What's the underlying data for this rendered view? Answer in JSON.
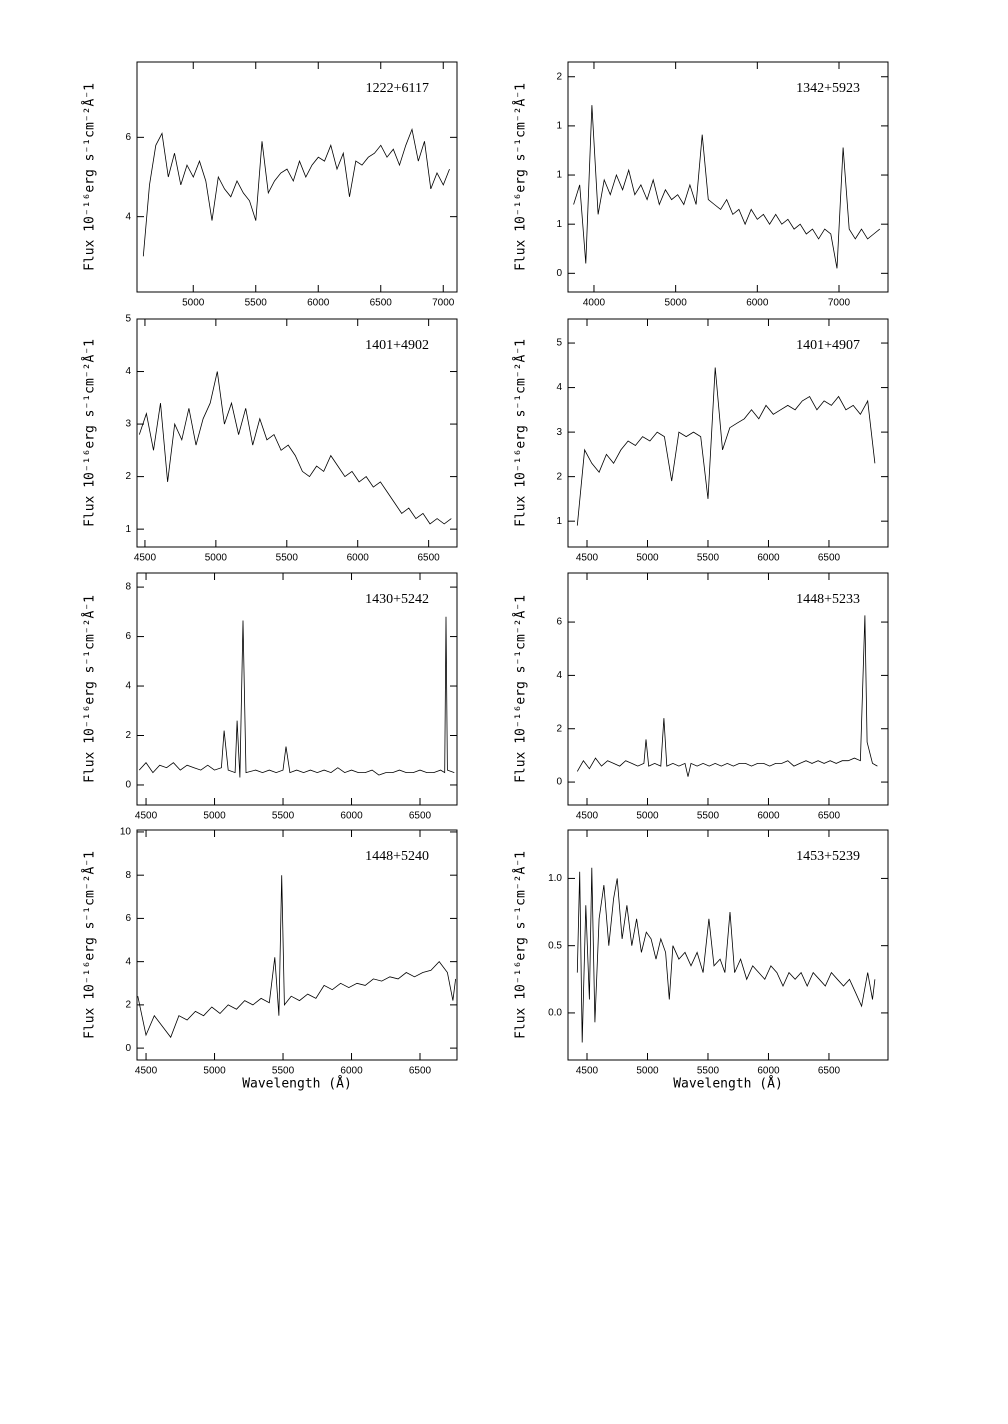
{
  "chart_data": [
    {
      "type": "line",
      "title": "1222+6117",
      "y_label": "Flux 10⁻¹⁶erg s⁻¹cm⁻²Å⁻1",
      "color": "#000000",
      "xlim": [
        4550,
        7110
      ],
      "ylim": [
        2.1,
        7.9
      ],
      "xticks": [
        5000,
        5500,
        6000,
        6500,
        7000
      ],
      "yticks": [
        4,
        6
      ],
      "x": [
        4600,
        4650,
        4700,
        4750,
        4800,
        4850,
        4900,
        4950,
        5000,
        5050,
        5100,
        5150,
        5200,
        5250,
        5300,
        5350,
        5400,
        5450,
        5500,
        5550,
        5600,
        5650,
        5700,
        5750,
        5800,
        5850,
        5900,
        5950,
        6000,
        6050,
        6100,
        6150,
        6200,
        6250,
        6300,
        6350,
        6400,
        6450,
        6500,
        6550,
        6600,
        6650,
        6700,
        6750,
        6800,
        6850,
        6900,
        6950,
        7000,
        7050
      ],
      "values": [
        3.0,
        4.8,
        5.8,
        6.1,
        5.0,
        5.6,
        4.8,
        5.3,
        5.0,
        5.4,
        4.9,
        3.9,
        5.0,
        4.7,
        4.5,
        4.9,
        4.6,
        4.4,
        3.9,
        5.9,
        4.6,
        4.9,
        5.1,
        5.2,
        4.9,
        5.4,
        5.0,
        5.3,
        5.5,
        5.4,
        5.8,
        5.2,
        5.6,
        4.5,
        5.4,
        5.3,
        5.5,
        5.6,
        5.8,
        5.5,
        5.7,
        5.3,
        5.8,
        6.2,
        5.4,
        5.9,
        4.7,
        5.1,
        4.8,
        5.2
      ]
    },
    {
      "type": "line",
      "title": "1342+5923",
      "y_label": "Flux 10⁻¹⁶erg s⁻¹cm⁻²Å⁻1",
      "color": "#000000",
      "xlim": [
        3682,
        7600
      ],
      "ylim": [
        -0.19,
        2.15
      ],
      "xticks": [
        4000,
        5000,
        6000,
        7000
      ],
      "yticks": [
        0,
        {
          "value": 0.5,
          "label": "1"
        },
        1,
        {
          "value": 1.5,
          "label": "1"
        },
        2
      ],
      "x": [
        3750,
        3825,
        3900,
        3975,
        4050,
        4125,
        4200,
        4275,
        4350,
        4425,
        4500,
        4575,
        4650,
        4725,
        4800,
        4875,
        4950,
        5025,
        5100,
        5175,
        5250,
        5325,
        5400,
        5475,
        5550,
        5625,
        5700,
        5775,
        5850,
        5925,
        6000,
        6075,
        6150,
        6225,
        6300,
        6375,
        6450,
        6525,
        6600,
        6675,
        6750,
        6825,
        6900,
        6975,
        7050,
        7125,
        7200,
        7275,
        7350,
        7425,
        7500
      ],
      "values": [
        0.7,
        0.9,
        0.1,
        1.71,
        0.6,
        0.95,
        0.8,
        1.0,
        0.85,
        1.05,
        0.8,
        0.9,
        0.75,
        0.95,
        0.7,
        0.85,
        0.75,
        0.8,
        0.7,
        0.9,
        0.7,
        1.41,
        0.75,
        0.7,
        0.65,
        0.75,
        0.6,
        0.65,
        0.5,
        0.65,
        0.55,
        0.6,
        0.5,
        0.6,
        0.5,
        0.55,
        0.45,
        0.5,
        0.4,
        0.45,
        0.35,
        0.45,
        0.4,
        0.05,
        1.28,
        0.45,
        0.35,
        0.45,
        0.35,
        0.4,
        0.45
      ]
    },
    {
      "type": "line",
      "title": "1401+4902",
      "y_label": "Flux 10⁻¹⁶erg s⁻¹cm⁻²Å⁻1",
      "color": "#000000",
      "xlim": [
        4444,
        6700
      ],
      "ylim": [
        0.66,
        5.0
      ],
      "xticks": [
        4500,
        5000,
        5500,
        6000,
        6500
      ],
      "yticks": [
        1,
        2,
        3,
        4,
        5
      ],
      "x": [
        4460,
        4510,
        4560,
        4610,
        4660,
        4710,
        4760,
        4810,
        4860,
        4910,
        4960,
        5010,
        5060,
        5110,
        5160,
        5210,
        5260,
        5310,
        5360,
        5410,
        5460,
        5510,
        5560,
        5610,
        5660,
        5710,
        5760,
        5810,
        5860,
        5910,
        5960,
        6010,
        6060,
        6110,
        6160,
        6210,
        6260,
        6310,
        6360,
        6410,
        6460,
        6510,
        6560,
        6610,
        6660
      ],
      "values": [
        2.8,
        3.2,
        2.5,
        3.4,
        1.9,
        3.0,
        2.7,
        3.3,
        2.6,
        3.1,
        3.4,
        4.0,
        3.0,
        3.4,
        2.8,
        3.3,
        2.6,
        3.1,
        2.7,
        2.8,
        2.5,
        2.6,
        2.4,
        2.1,
        2.0,
        2.2,
        2.1,
        2.4,
        2.2,
        2.0,
        2.1,
        1.9,
        2.0,
        1.8,
        1.9,
        1.7,
        1.5,
        1.3,
        1.4,
        1.2,
        1.3,
        1.1,
        1.2,
        1.1,
        1.2
      ]
    },
    {
      "type": "line",
      "title": "1401+4907",
      "y_label": "Flux 10⁻¹⁶erg s⁻¹cm⁻²Å⁻1",
      "color": "#000000",
      "xlim": [
        4343,
        6988
      ],
      "ylim": [
        0.42,
        5.54
      ],
      "xticks": [
        4500,
        5000,
        5500,
        6000,
        6500
      ],
      "yticks": [
        1,
        2,
        3,
        4,
        5
      ],
      "x": [
        4420,
        4480,
        4540,
        4600,
        4660,
        4720,
        4780,
        4840,
        4900,
        4960,
        5020,
        5080,
        5140,
        5200,
        5260,
        5320,
        5380,
        5440,
        5500,
        5560,
        5620,
        5680,
        5740,
        5800,
        5860,
        5920,
        5980,
        6040,
        6100,
        6160,
        6220,
        6280,
        6340,
        6400,
        6460,
        6520,
        6580,
        6640,
        6700,
        6760,
        6820,
        6880
      ],
      "values": [
        0.9,
        2.6,
        2.3,
        2.1,
        2.5,
        2.3,
        2.6,
        2.8,
        2.7,
        2.9,
        2.8,
        3.0,
        2.9,
        1.9,
        3.0,
        2.9,
        3.0,
        2.9,
        1.5,
        4.45,
        2.6,
        3.1,
        3.2,
        3.3,
        3.5,
        3.3,
        3.6,
        3.4,
        3.5,
        3.6,
        3.5,
        3.7,
        3.8,
        3.5,
        3.7,
        3.6,
        3.8,
        3.5,
        3.6,
        3.4,
        3.7,
        2.3
      ]
    },
    {
      "type": "line",
      "title": "1430+5242",
      "y_label": "Flux 10⁻¹⁶erg s⁻¹cm⁻²Å⁻1",
      "color": "#000000",
      "xlim": [
        4434,
        6770
      ],
      "ylim": [
        -0.81,
        8.57
      ],
      "xticks": [
        4500,
        5000,
        5500,
        6000,
        6500
      ],
      "yticks": [
        0,
        2,
        4,
        6,
        8
      ],
      "x": [
        4450,
        4500,
        4550,
        4600,
        4650,
        4700,
        4750,
        4800,
        4850,
        4900,
        4950,
        5000,
        5050,
        5070,
        5100,
        5150,
        5165,
        5185,
        5208,
        5230,
        5300,
        5350,
        5400,
        5450,
        5500,
        5522,
        5550,
        5600,
        5650,
        5700,
        5750,
        5800,
        5850,
        5900,
        5950,
        6000,
        6050,
        6100,
        6150,
        6200,
        6250,
        6300,
        6350,
        6400,
        6450,
        6500,
        6550,
        6600,
        6650,
        6680,
        6690,
        6700,
        6750
      ],
      "values": [
        0.6,
        0.9,
        0.5,
        0.8,
        0.7,
        0.9,
        0.6,
        0.8,
        0.7,
        0.6,
        0.8,
        0.6,
        0.7,
        2.2,
        0.6,
        0.5,
        2.6,
        0.3,
        6.65,
        0.5,
        0.6,
        0.5,
        0.6,
        0.5,
        0.6,
        1.55,
        0.5,
        0.6,
        0.5,
        0.6,
        0.5,
        0.6,
        0.5,
        0.7,
        0.5,
        0.6,
        0.5,
        0.5,
        0.6,
        0.4,
        0.5,
        0.5,
        0.6,
        0.5,
        0.5,
        0.6,
        0.5,
        0.5,
        0.6,
        0.5,
        6.8,
        0.6,
        0.5
      ]
    },
    {
      "type": "line",
      "title": "1448+5233",
      "y_label": "Flux 10⁻¹⁶erg s⁻¹cm⁻²Å⁻1",
      "color": "#000000",
      "xlim": [
        4343,
        6988
      ],
      "ylim": [
        -0.86,
        7.84
      ],
      "xticks": [
        4500,
        5000,
        5500,
        6000,
        6500
      ],
      "yticks": [
        0,
        2,
        4,
        6
      ],
      "x": [
        4420,
        4470,
        4520,
        4570,
        4620,
        4670,
        4720,
        4770,
        4820,
        4870,
        4920,
        4970,
        4988,
        5010,
        5060,
        5110,
        5136,
        5160,
        5210,
        5260,
        5310,
        5335,
        5360,
        5410,
        5460,
        5510,
        5560,
        5610,
        5660,
        5710,
        5760,
        5810,
        5860,
        5910,
        5960,
        6010,
        6060,
        6110,
        6160,
        6210,
        6260,
        6310,
        6360,
        6410,
        6460,
        6510,
        6560,
        6610,
        6660,
        6710,
        6760,
        6797,
        6815,
        6860,
        6900
      ],
      "values": [
        0.4,
        0.8,
        0.5,
        0.9,
        0.6,
        0.8,
        0.7,
        0.6,
        0.8,
        0.7,
        0.6,
        0.7,
        1.6,
        0.6,
        0.7,
        0.6,
        2.4,
        0.6,
        0.7,
        0.6,
        0.7,
        0.2,
        0.7,
        0.6,
        0.7,
        0.6,
        0.7,
        0.6,
        0.7,
        0.6,
        0.7,
        0.7,
        0.6,
        0.7,
        0.7,
        0.6,
        0.7,
        0.7,
        0.8,
        0.6,
        0.7,
        0.8,
        0.7,
        0.8,
        0.7,
        0.8,
        0.7,
        0.8,
        0.8,
        0.9,
        0.8,
        6.25,
        1.5,
        0.7,
        0.6
      ]
    },
    {
      "type": "line",
      "title": "1448+5240",
      "y_label": "Flux 10⁻¹⁶erg s⁻¹cm⁻²Å⁻1",
      "x_label": "Wavelength (Å)",
      "color": "#000000",
      "xlim": [
        4434,
        6770
      ],
      "ylim": [
        -0.55,
        10.09
      ],
      "xticks": [
        4500,
        5000,
        5500,
        6000,
        6500
      ],
      "yticks": [
        0,
        2,
        4,
        6,
        8,
        10
      ],
      "x": [
        4440,
        4500,
        4560,
        4620,
        4680,
        4740,
        4800,
        4860,
        4920,
        4980,
        5040,
        5100,
        5160,
        5220,
        5280,
        5340,
        5400,
        5440,
        5470,
        5490,
        5510,
        5560,
        5620,
        5680,
        5740,
        5800,
        5860,
        5920,
        5980,
        6040,
        6100,
        6160,
        6220,
        6280,
        6340,
        6400,
        6460,
        6520,
        6580,
        6640,
        6700,
        6740,
        6760
      ],
      "values": [
        2.4,
        0.6,
        1.5,
        1.0,
        0.5,
        1.5,
        1.3,
        1.7,
        1.5,
        1.9,
        1.6,
        2.0,
        1.8,
        2.2,
        2.0,
        2.3,
        2.1,
        4.2,
        1.5,
        8.0,
        2.0,
        2.4,
        2.2,
        2.5,
        2.3,
        2.9,
        2.7,
        3.0,
        2.8,
        3.0,
        2.9,
        3.2,
        3.1,
        3.3,
        3.2,
        3.5,
        3.3,
        3.5,
        3.6,
        4.0,
        3.5,
        2.2,
        3.2
      ]
    },
    {
      "type": "line",
      "title": "1453+5239",
      "y_label": "Flux 10⁻¹⁶erg s⁻¹cm⁻²Å⁻1",
      "x_label": "Wavelength (Å)",
      "color": "#000000",
      "xlim": [
        4343,
        6988
      ],
      "ylim": [
        -0.35,
        1.36
      ],
      "xticks": [
        4500,
        5000,
        5500,
        6000,
        6500
      ],
      "yticks": [
        {
          "value": 0,
          "label": "0.0"
        },
        0.5,
        {
          "value": 1,
          "label": "1.0"
        }
      ],
      "x": [
        4420,
        4440,
        4460,
        4490,
        4520,
        4540,
        4565,
        4600,
        4640,
        4680,
        4720,
        4750,
        4790,
        4830,
        4870,
        4910,
        4950,
        4990,
        5030,
        5070,
        5110,
        5150,
        5180,
        5210,
        5260,
        5310,
        5360,
        5410,
        5460,
        5508,
        5550,
        5600,
        5640,
        5682,
        5720,
        5770,
        5820,
        5870,
        5920,
        5970,
        6020,
        6070,
        6120,
        6170,
        6220,
        6270,
        6320,
        6370,
        6420,
        6470,
        6520,
        6570,
        6620,
        6670,
        6720,
        6770,
        6820,
        6860,
        6880
      ],
      "values": [
        0.3,
        1.05,
        -0.22,
        0.8,
        0.1,
        1.08,
        -0.07,
        0.7,
        0.95,
        0.5,
        0.85,
        1.0,
        0.55,
        0.8,
        0.5,
        0.7,
        0.45,
        0.6,
        0.55,
        0.4,
        0.55,
        0.45,
        0.1,
        0.5,
        0.4,
        0.45,
        0.35,
        0.45,
        0.3,
        0.7,
        0.35,
        0.4,
        0.3,
        0.75,
        0.3,
        0.4,
        0.25,
        0.35,
        0.3,
        0.25,
        0.35,
        0.3,
        0.2,
        0.3,
        0.25,
        0.3,
        0.2,
        0.3,
        0.25,
        0.2,
        0.3,
        0.25,
        0.2,
        0.25,
        0.15,
        0.05,
        0.3,
        0.1,
        0.25
      ]
    }
  ]
}
